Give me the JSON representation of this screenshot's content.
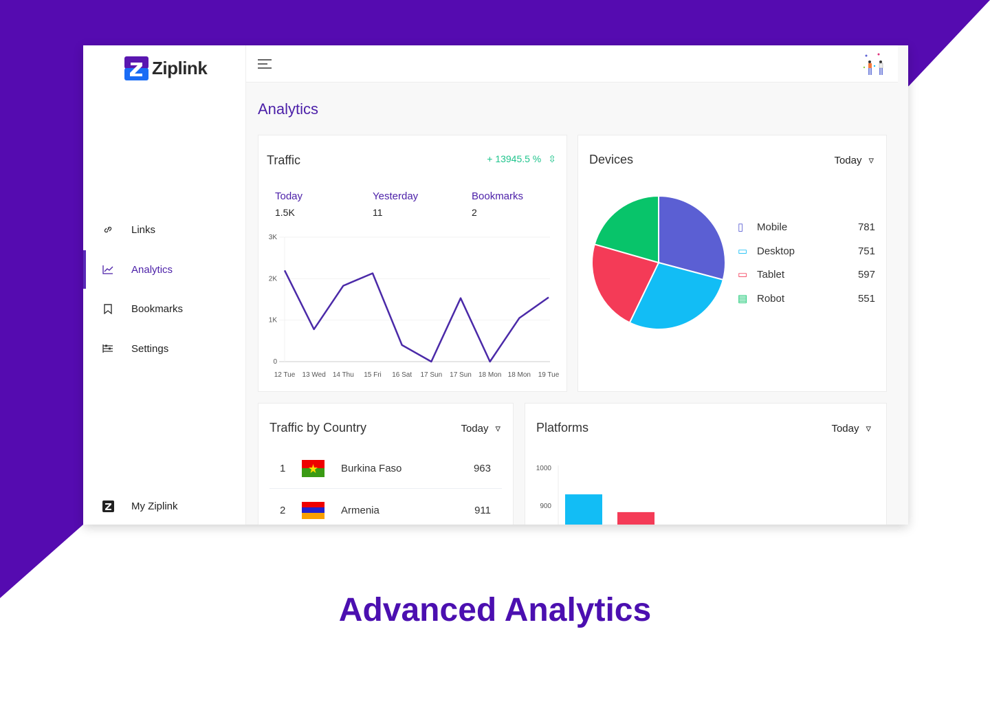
{
  "app": {
    "name": "Ziplink"
  },
  "sidebar": {
    "items": [
      {
        "label": "Links",
        "icon": "link-icon"
      },
      {
        "label": "Analytics",
        "icon": "chart-icon",
        "active": true
      },
      {
        "label": "Bookmarks",
        "icon": "bookmark-icon"
      },
      {
        "label": "Settings",
        "icon": "settings-icon"
      }
    ],
    "footer": "My Ziplink"
  },
  "page": {
    "title": "Analytics"
  },
  "traffic": {
    "title": "Traffic",
    "change": "+ 13945.5 %",
    "stats": [
      {
        "label": "Today",
        "value": "1.5K"
      },
      {
        "label": "Yesterday",
        "value": "11"
      },
      {
        "label": "Bookmarks",
        "value": "2"
      }
    ]
  },
  "devices": {
    "title": "Devices",
    "filter": "Today",
    "items": [
      {
        "label": "Mobile",
        "value": 781,
        "color": "#5b5fd3"
      },
      {
        "label": "Desktop",
        "value": 751,
        "color": "#12bdf5"
      },
      {
        "label": "Tablet",
        "value": 597,
        "color": "#f43b57"
      },
      {
        "label": "Robot",
        "value": 551,
        "color": "#08c46a"
      }
    ]
  },
  "country": {
    "title": "Traffic by Country",
    "filter": "Today",
    "rows": [
      {
        "rank": "1",
        "name": "Burkina Faso",
        "value": "963"
      },
      {
        "rank": "2",
        "name": "Armenia",
        "value": "911"
      }
    ]
  },
  "platforms": {
    "title": "Platforms",
    "filter": "Today"
  },
  "footer_title": "Advanced Analytics",
  "chart_data": [
    {
      "type": "line",
      "title": "Traffic",
      "categories": [
        "12 Tue",
        "13 Wed",
        "14 Thu",
        "15 Fri",
        "16 Sat",
        "17 Sun",
        "17 Sun",
        "18 Mon",
        "18 Mon",
        "19 Tue"
      ],
      "values": [
        2200,
        780,
        1830,
        2130,
        400,
        0,
        1530,
        0,
        1050,
        1550
      ],
      "yticks": [
        "0",
        "1K",
        "2K",
        "3K"
      ],
      "ylim": [
        0,
        3000
      ],
      "color": "#4b2aa8"
    },
    {
      "type": "pie",
      "title": "Devices",
      "labels": [
        "Mobile",
        "Desktop",
        "Tablet",
        "Robot"
      ],
      "values": [
        781,
        751,
        597,
        551
      ]
    },
    {
      "type": "bar",
      "title": "Platforms",
      "yticks": [
        "900",
        "1000"
      ],
      "values": [
        929,
        882
      ],
      "colors": [
        "#12bdf5",
        "#f43b57"
      ]
    }
  ]
}
